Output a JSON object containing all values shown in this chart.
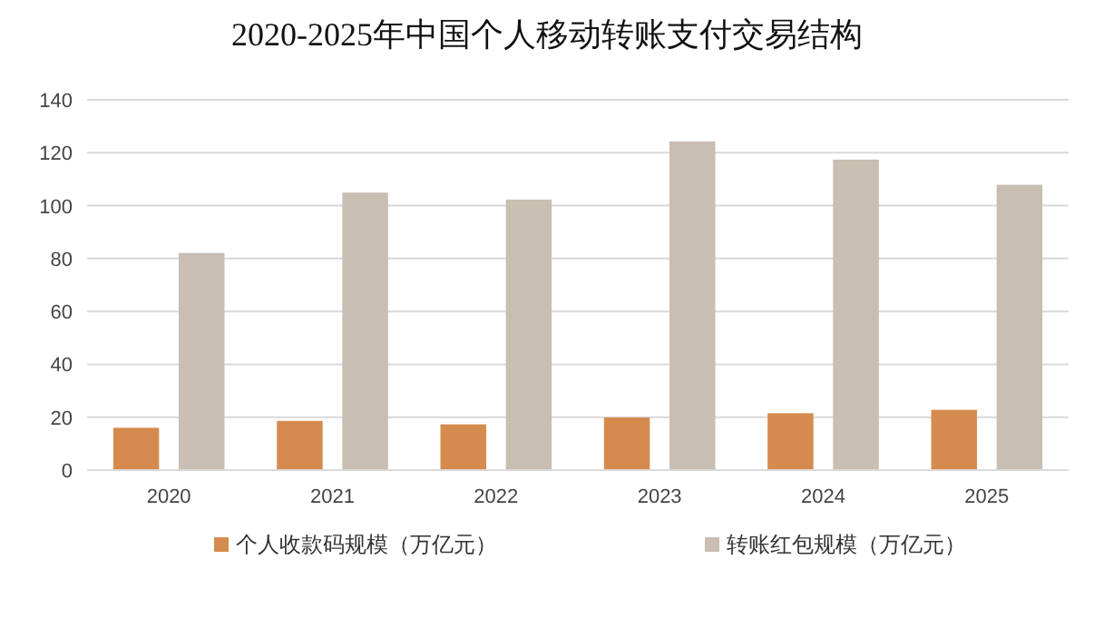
{
  "chart_data": {
    "type": "bar",
    "title": "2020-2025年中国个人移动转账支付交易结构",
    "categories": [
      "2020",
      "2021",
      "2022",
      "2023",
      "2024",
      "2025"
    ],
    "series": [
      {
        "name": "个人收款码规模（万亿元）",
        "color": "#d68b4e",
        "values": [
          16,
          18.6,
          17.3,
          19.9,
          21.5,
          22.8
        ]
      },
      {
        "name": "转账红包规模（万亿元）",
        "color": "#c8beb1",
        "values": [
          82.1,
          104.9,
          102.3,
          124.3,
          117.4,
          107.9
        ]
      }
    ],
    "ylim": [
      0,
      140
    ],
    "yticks": [
      0,
      20,
      40,
      60,
      80,
      100,
      120,
      140
    ],
    "grid": "y",
    "legend": "bottom"
  }
}
